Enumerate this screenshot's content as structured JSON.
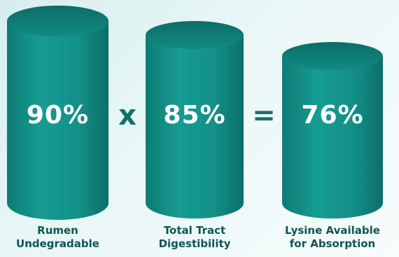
{
  "colors": {
    "cylinder_body": "#139088",
    "cylinder_top": "#0f7c76",
    "operator": "#12716d",
    "label_text": "#0e5553",
    "value_text": "#ffffff"
  },
  "equation": {
    "terms": [
      {
        "value": "90%",
        "label_line1": "Rumen",
        "label_line2": "Undegradable"
      },
      {
        "value": "85%",
        "label_line1": "Total Tract",
        "label_line2": "Digestibility"
      },
      {
        "value": "76%",
        "label_line1": "Lysine Available",
        "label_line2": "for Absorption"
      }
    ],
    "operators": [
      "x",
      "="
    ]
  }
}
